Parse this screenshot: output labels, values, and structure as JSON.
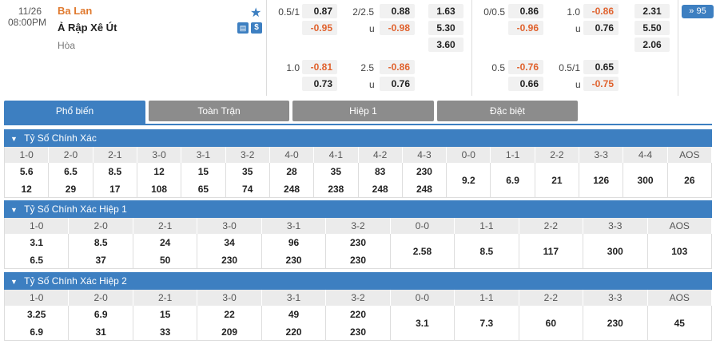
{
  "match": {
    "date": "11/26",
    "time": "08:00PM",
    "home": "Ba Lan",
    "away": "Ả Rập Xê Út",
    "draw": "Hòa",
    "more_count": "» 95",
    "ft_handicap": {
      "rows": [
        {
          "line": "0.5/1",
          "home": "0.87",
          "away": "-0.95"
        },
        {
          "line": "1.0",
          "home": "-0.81",
          "away": "0.73"
        }
      ]
    },
    "ft_overunder": {
      "rows": [
        {
          "line": "2/2.5",
          "home": "0.88",
          "side": "u",
          "away": "-0.98"
        },
        {
          "line": "2.5",
          "home": "-0.86",
          "side": "u",
          "away": "0.76"
        }
      ]
    },
    "ft_1x2": {
      "home": "1.63",
      "away": "5.30",
      "draw": "3.60"
    },
    "h1_handicap": {
      "rows": [
        {
          "line": "0/0.5",
          "home": "0.86",
          "away": "-0.96"
        },
        {
          "line": "0.5",
          "home": "-0.76",
          "away": "0.66"
        }
      ]
    },
    "h1_overunder": {
      "rows": [
        {
          "line": "1.0",
          "home": "-0.86",
          "side": "u",
          "away": "0.76"
        },
        {
          "line": "0.5/1",
          "home": "0.65",
          "side": "u",
          "away": "-0.75"
        }
      ]
    },
    "h1_1x2": {
      "home": "2.31",
      "away": "5.50",
      "draw": "2.06"
    }
  },
  "tabs": [
    "Phổ biến",
    "Toàn Trận",
    "Hiệp 1",
    "Đặc biệt"
  ],
  "sections": [
    {
      "title": "Tỷ Số Chính Xác",
      "headers": [
        "1-0",
        "2-0",
        "2-1",
        "3-0",
        "3-1",
        "3-2",
        "4-0",
        "4-1",
        "4-2",
        "4-3",
        "0-0",
        "1-1",
        "2-2",
        "3-3",
        "4-4",
        "AOS"
      ],
      "top": [
        "5.6",
        "6.5",
        "8.5",
        "12",
        "15",
        "35",
        "28",
        "35",
        "83",
        "230"
      ],
      "bottom": [
        "12",
        "29",
        "17",
        "108",
        "65",
        "74",
        "248",
        "238",
        "248",
        "248"
      ],
      "single": [
        "9.2",
        "6.9",
        "21",
        "126",
        "300",
        "26"
      ]
    },
    {
      "title": "Tỷ Số Chính Xác Hiệp 1",
      "headers": [
        "1-0",
        "2-0",
        "2-1",
        "3-0",
        "3-1",
        "3-2",
        "0-0",
        "1-1",
        "2-2",
        "3-3",
        "AOS"
      ],
      "top": [
        "3.1",
        "8.5",
        "24",
        "34",
        "96",
        "230"
      ],
      "bottom": [
        "6.5",
        "37",
        "50",
        "230",
        "230",
        "230"
      ],
      "single": [
        "2.58",
        "8.5",
        "117",
        "300",
        "103"
      ]
    },
    {
      "title": "Tỷ Số Chính Xác Hiệp 2",
      "headers": [
        "1-0",
        "2-0",
        "2-1",
        "3-0",
        "3-1",
        "3-2",
        "0-0",
        "1-1",
        "2-2",
        "3-3",
        "AOS"
      ],
      "top": [
        "3.25",
        "6.9",
        "15",
        "22",
        "49",
        "220"
      ],
      "bottom": [
        "6.9",
        "31",
        "33",
        "209",
        "220",
        "230"
      ],
      "single": [
        "3.1",
        "7.3",
        "60",
        "230",
        "45"
      ]
    }
  ],
  "colors": {
    "accent": "#3d7fc1",
    "negative": "#e0622e",
    "home": "#e0792e"
  }
}
